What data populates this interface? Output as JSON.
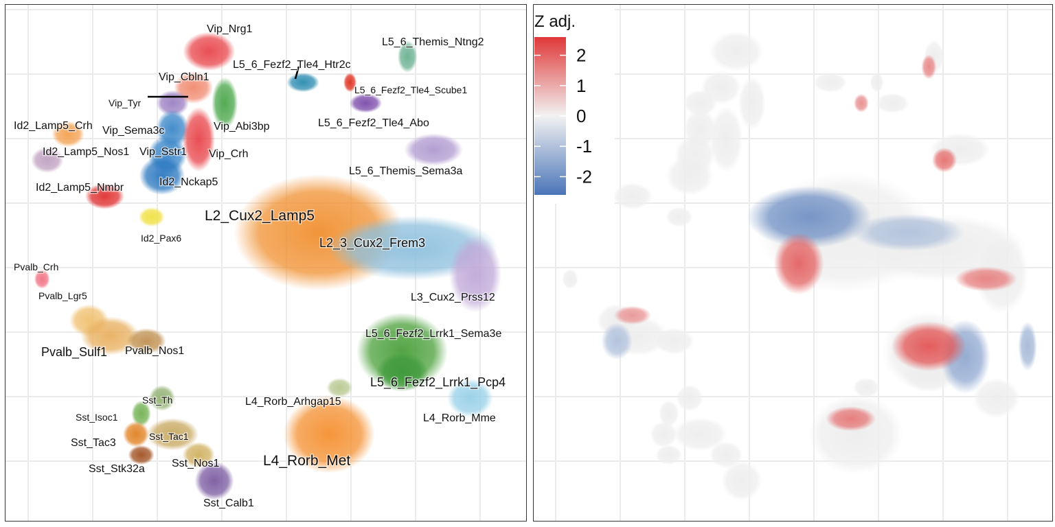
{
  "chart_data": [
    {
      "type": "scatter",
      "title": "",
      "xlabel": "",
      "ylabel": "",
      "grid": true,
      "clusters": [
        {
          "name": "Vip_Nrg1",
          "color": "#e8454a",
          "x": 0.39,
          "y": 0.09,
          "rx": 0.04,
          "ry": 0.03
        },
        {
          "name": "Vip_Cbln1",
          "color": "#f08a70",
          "x": 0.36,
          "y": 0.16,
          "rx": 0.03,
          "ry": 0.025
        },
        {
          "name": "Vip_Tyr",
          "color": "#9b7fc2",
          "x": 0.32,
          "y": 0.19,
          "rx": 0.025,
          "ry": 0.02
        },
        {
          "name": "Vip_Abi3bp",
          "color": "#4aa64a",
          "x": 0.42,
          "y": 0.19,
          "rx": 0.02,
          "ry": 0.04
        },
        {
          "name": "Vip_Sema3c",
          "color": "#3a86c8",
          "x": 0.32,
          "y": 0.24,
          "rx": 0.025,
          "ry": 0.03
        },
        {
          "name": "Vip_Sstr1",
          "color": "#3a86c8",
          "x": 0.31,
          "y": 0.29,
          "rx": 0.03,
          "ry": 0.03
        },
        {
          "name": "Vip_Crh",
          "color": "#e8454a",
          "x": 0.37,
          "y": 0.26,
          "rx": 0.025,
          "ry": 0.05
        },
        {
          "name": "Id2_Nckap5",
          "color": "#2b78c0",
          "x": 0.3,
          "y": 0.33,
          "rx": 0.035,
          "ry": 0.03
        },
        {
          "name": "Id2_Pax6",
          "color": "#f0e040",
          "x": 0.28,
          "y": 0.41,
          "rx": 0.02,
          "ry": 0.015
        },
        {
          "name": "Id2_Lamp5_Crh",
          "color": "#f4a050",
          "x": 0.12,
          "y": 0.25,
          "rx": 0.025,
          "ry": 0.02
        },
        {
          "name": "Id2_Lamp5_Nos1",
          "color": "#c0a0c0",
          "x": 0.08,
          "y": 0.3,
          "rx": 0.025,
          "ry": 0.02
        },
        {
          "name": "Id2_Lamp5_Nmbr",
          "color": "#e03030",
          "x": 0.19,
          "y": 0.37,
          "rx": 0.03,
          "ry": 0.02
        },
        {
          "name": "L5_6_Fezf2_Tle4_Htr2c",
          "color": "#2a8ab0",
          "x": 0.57,
          "y": 0.15,
          "rx": 0.025,
          "ry": 0.015
        },
        {
          "name": "L5_6_Themis_Ntng2",
          "color": "#6ab090",
          "x": 0.77,
          "y": 0.1,
          "rx": 0.015,
          "ry": 0.025
        },
        {
          "name": "L5_6_Fezf2_Tle4_Scube1",
          "color": "#e03020",
          "x": 0.66,
          "y": 0.15,
          "rx": 0.01,
          "ry": 0.015
        },
        {
          "name": "L5_6_Fezf2_Tle4_Abo",
          "color": "#7a4aaa",
          "x": 0.69,
          "y": 0.19,
          "rx": 0.025,
          "ry": 0.015
        },
        {
          "name": "L5_6_Themis_Sema3a",
          "color": "#b09ad0",
          "x": 0.82,
          "y": 0.28,
          "rx": 0.045,
          "ry": 0.025
        },
        {
          "name": "L2_Cux2_Lamp5",
          "color": "#f09030",
          "x": 0.6,
          "y": 0.44,
          "rx": 0.13,
          "ry": 0.09
        },
        {
          "name": "L2_3_Cux2_Frem3",
          "color": "#8ec0de",
          "x": 0.78,
          "y": 0.47,
          "rx": 0.13,
          "ry": 0.05
        },
        {
          "name": "L3_Cux2_Prss12",
          "color": "#c0a8d8",
          "x": 0.9,
          "y": 0.52,
          "rx": 0.04,
          "ry": 0.06
        },
        {
          "name": "L5_6_Fezf2_Lrrk1_Sema3e",
          "color": "#4aa03a",
          "x": 0.76,
          "y": 0.67,
          "rx": 0.07,
          "ry": 0.06
        },
        {
          "name": "L5_6_Fezf2_Lrrk1_Pcp4",
          "color": "#3f9a3a",
          "x": 0.76,
          "y": 0.71,
          "rx": 0.04,
          "ry": 0.03
        },
        {
          "name": "L4_Rorb_Arhgap15",
          "color": "#b8c890",
          "x": 0.64,
          "y": 0.74,
          "rx": 0.02,
          "ry": 0.015
        },
        {
          "name": "L4_Rorb_Mme",
          "color": "#98d0e8",
          "x": 0.89,
          "y": 0.76,
          "rx": 0.035,
          "ry": 0.03
        },
        {
          "name": "L4_Rorb_Met",
          "color": "#f49030",
          "x": 0.62,
          "y": 0.83,
          "rx": 0.07,
          "ry": 0.06
        },
        {
          "name": "Pvalb_Crh",
          "color": "#f07080",
          "x": 0.07,
          "y": 0.53,
          "rx": 0.012,
          "ry": 0.015
        },
        {
          "name": "Pvalb_Lgr5",
          "color": "#f0c070",
          "x": 0.16,
          "y": 0.61,
          "rx": 0.03,
          "ry": 0.025
        },
        {
          "name": "Pvalb_Sulf1",
          "color": "#e8b060",
          "x": 0.2,
          "y": 0.64,
          "rx": 0.045,
          "ry": 0.03
        },
        {
          "name": "Pvalb_Nos1",
          "color": "#c09050",
          "x": 0.27,
          "y": 0.65,
          "rx": 0.03,
          "ry": 0.02
        },
        {
          "name": "Sst_Th",
          "color": "#90b070",
          "x": 0.3,
          "y": 0.76,
          "rx": 0.02,
          "ry": 0.02
        },
        {
          "name": "Sst_Isoc1",
          "color": "#70b050",
          "x": 0.26,
          "y": 0.79,
          "rx": 0.015,
          "ry": 0.02
        },
        {
          "name": "Sst_Tac3",
          "color": "#e08020",
          "x": 0.25,
          "y": 0.83,
          "rx": 0.02,
          "ry": 0.02
        },
        {
          "name": "Sst_Tac1",
          "color": "#c8a860",
          "x": 0.32,
          "y": 0.83,
          "rx": 0.04,
          "ry": 0.025
        },
        {
          "name": "Sst_Stk32a",
          "color": "#a05020",
          "x": 0.26,
          "y": 0.87,
          "rx": 0.02,
          "ry": 0.015
        },
        {
          "name": "Sst_Nos1",
          "color": "#d0b060",
          "x": 0.37,
          "y": 0.87,
          "rx": 0.025,
          "ry": 0.02
        },
        {
          "name": "Sst_Calb1",
          "color": "#7a5aa0",
          "x": 0.4,
          "y": 0.92,
          "rx": 0.03,
          "ry": 0.03
        }
      ],
      "labels": [
        {
          "text": "Vip_Nrg1",
          "size": "small"
        },
        {
          "text": "L5_6_Themis_Ntng2",
          "size": "small"
        },
        {
          "text": "L5_6_Fezf2_Tle4_Htr2c",
          "size": "small"
        },
        {
          "text": "Vip_Cbln1",
          "size": "small"
        },
        {
          "text": "L5_6_Fezf2_Tle4_Scube1",
          "size": "tiny"
        },
        {
          "text": "Vip_Tyr",
          "size": "tiny"
        },
        {
          "text": "Id2_Lamp5_Crh",
          "size": "small"
        },
        {
          "text": "Vip_Abi3bp",
          "size": "small"
        },
        {
          "text": "L5_6_Fezf2_Tle4_Abo",
          "size": "small"
        },
        {
          "text": "Vip_Sema3c",
          "size": "small"
        },
        {
          "text": "Id2_Lamp5_Nos1",
          "size": "small"
        },
        {
          "text": "Vip_Sstr1",
          "size": "small"
        },
        {
          "text": "Vip_Crh",
          "size": "small"
        },
        {
          "text": "L5_6_Themis_Sema3a",
          "size": "small"
        },
        {
          "text": "Id2_Nckap5",
          "size": "small"
        },
        {
          "text": "Id2_Lamp5_Nmbr",
          "size": "small"
        },
        {
          "text": "L2_Cux2_Lamp5",
          "size": "large"
        },
        {
          "text": "Id2_Pax6",
          "size": "tiny"
        },
        {
          "text": "L2_3_Cux2_Frem3",
          "size": "medium"
        },
        {
          "text": "Pvalb_Crh",
          "size": "tiny"
        },
        {
          "text": "Pvalb_Lgr5",
          "size": "tiny"
        },
        {
          "text": "L3_Cux2_Prss12",
          "size": "small"
        },
        {
          "text": "L5_6_Fezf2_Lrrk1_Sema3e",
          "size": "small"
        },
        {
          "text": "Pvalb_Sulf1",
          "size": "medium"
        },
        {
          "text": "Pvalb_Nos1",
          "size": "small"
        },
        {
          "text": "L5_6_Fezf2_Lrrk1_Pcp4",
          "size": "medium"
        },
        {
          "text": "Sst_Th",
          "size": "tiny"
        },
        {
          "text": "L4_Rorb_Arhgap15",
          "size": "small"
        },
        {
          "text": "Sst_Isoc1",
          "size": "tiny"
        },
        {
          "text": "L4_Rorb_Mme",
          "size": "small"
        },
        {
          "text": "Sst_Tac1",
          "size": "tiny"
        },
        {
          "text": "Sst_Tac3",
          "size": "small"
        },
        {
          "text": "L4_Rorb_Met",
          "size": "large"
        },
        {
          "text": "Sst_Nos1",
          "size": "small"
        },
        {
          "text": "Sst_Stk32a",
          "size": "small"
        },
        {
          "text": "Sst_Calb1",
          "size": "small"
        }
      ]
    },
    {
      "type": "scatter",
      "title": "",
      "xlabel": "",
      "ylabel": "",
      "grid": true,
      "colorbar": {
        "title": "Z adj.",
        "ticks": [
          "2",
          "1",
          "0",
          "-1",
          "-2"
        ],
        "tick_values": [
          2,
          1,
          0,
          -1,
          -2
        ],
        "range": [
          -2.6,
          2.6
        ],
        "colors": [
          "#4a74b8",
          "#f2f2f2",
          "#e03838"
        ]
      },
      "highlights": [
        {
          "z": -2.0,
          "x": 0.53,
          "y": 0.41,
          "rx": 0.1,
          "ry": 0.05
        },
        {
          "z": -1.0,
          "x": 0.72,
          "y": 0.44,
          "rx": 0.09,
          "ry": 0.03
        },
        {
          "z": -1.5,
          "x": 0.83,
          "y": 0.68,
          "rx": 0.04,
          "ry": 0.06
        },
        {
          "z": -1.2,
          "x": 0.95,
          "y": 0.66,
          "rx": 0.015,
          "ry": 0.04
        },
        {
          "z": -1.0,
          "x": 0.16,
          "y": 0.65,
          "rx": 0.025,
          "ry": 0.03
        },
        {
          "z": 2.0,
          "x": 0.51,
          "y": 0.5,
          "rx": 0.04,
          "ry": 0.05
        },
        {
          "z": 2.2,
          "x": 0.76,
          "y": 0.66,
          "rx": 0.06,
          "ry": 0.04
        },
        {
          "z": 1.6,
          "x": 0.87,
          "y": 0.53,
          "rx": 0.05,
          "ry": 0.02
        },
        {
          "z": 1.5,
          "x": 0.76,
          "y": 0.12,
          "rx": 0.012,
          "ry": 0.02
        },
        {
          "z": 1.4,
          "x": 0.63,
          "y": 0.19,
          "rx": 0.012,
          "ry": 0.015
        },
        {
          "z": 1.8,
          "x": 0.79,
          "y": 0.3,
          "rx": 0.02,
          "ry": 0.02
        },
        {
          "z": 1.7,
          "x": 0.61,
          "y": 0.8,
          "rx": 0.04,
          "ry": 0.02
        },
        {
          "z": 1.3,
          "x": 0.19,
          "y": 0.6,
          "rx": 0.03,
          "ry": 0.015
        }
      ]
    }
  ]
}
